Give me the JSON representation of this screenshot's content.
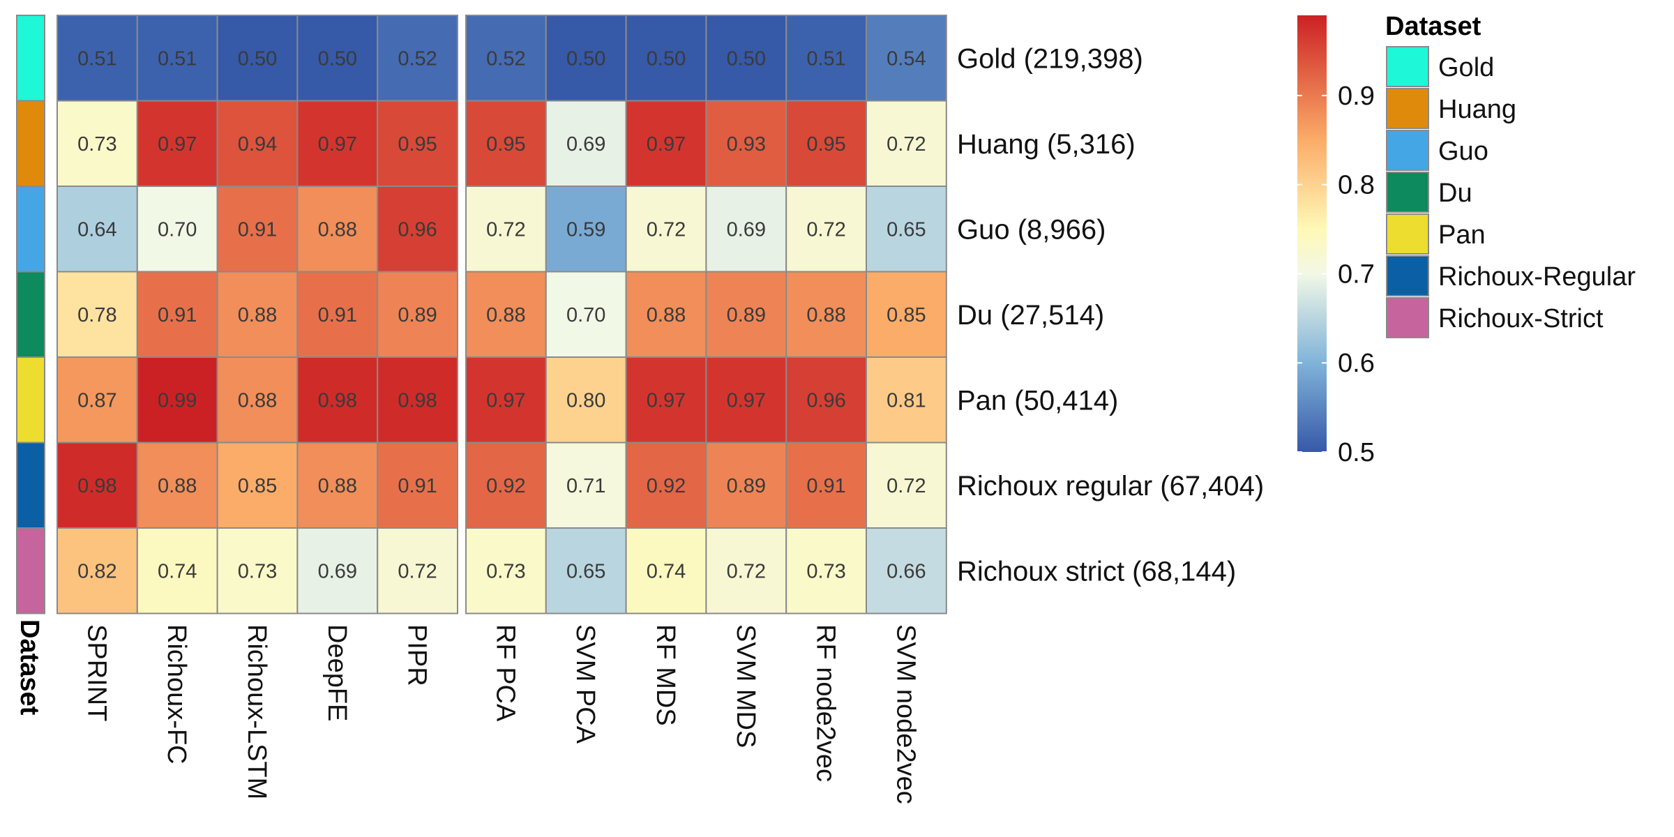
{
  "chart_data": {
    "type": "heatmap",
    "row_annotation_title": "Dataset",
    "rows": [
      "Gold (219,398)",
      "Huang (5,316)",
      "Guo (8,966)",
      "Du (27,514)",
      "Pan (50,414)",
      "Richoux regular (67,404)",
      "Richoux strict (68,144)"
    ],
    "column_groups": [
      [
        "SPRINT",
        "Richoux-FC",
        "Richoux-LSTM",
        "DeepFE",
        "PIPR"
      ],
      [
        "RF PCA",
        "SVM PCA",
        "RF MDS",
        "SVM MDS",
        "RF node2vec",
        "SVM node2vec"
      ]
    ],
    "values": [
      [
        0.51,
        0.51,
        0.5,
        0.5,
        0.52,
        0.52,
        0.5,
        0.5,
        0.5,
        0.51,
        0.54
      ],
      [
        0.73,
        0.97,
        0.94,
        0.97,
        0.95,
        0.95,
        0.69,
        0.97,
        0.93,
        0.95,
        0.72
      ],
      [
        0.64,
        0.7,
        0.91,
        0.88,
        0.96,
        0.72,
        0.59,
        0.72,
        0.69,
        0.72,
        0.65
      ],
      [
        0.78,
        0.91,
        0.88,
        0.91,
        0.89,
        0.88,
        0.7,
        0.88,
        0.89,
        0.88,
        0.85
      ],
      [
        0.87,
        0.99,
        0.88,
        0.98,
        0.98,
        0.97,
        0.8,
        0.97,
        0.97,
        0.96,
        0.81
      ],
      [
        0.98,
        0.88,
        0.85,
        0.88,
        0.91,
        0.92,
        0.71,
        0.92,
        0.89,
        0.91,
        0.72
      ],
      [
        0.82,
        0.74,
        0.73,
        0.69,
        0.72,
        0.73,
        0.65,
        0.74,
        0.72,
        0.73,
        0.66
      ]
    ],
    "row_annotation_colors": [
      "#1ef7d8",
      "#e08a0c",
      "#45a6e6",
      "#0d8a5e",
      "#ecdd2f",
      "#0b5fa5",
      "#c6649e"
    ],
    "color_scale": {
      "range": [
        0.5,
        0.99
      ],
      "ticks": [
        "0.5",
        "0.6",
        "0.7",
        "0.8",
        "0.9"
      ],
      "stops": [
        {
          "value": 0.5,
          "color": "#3659a8"
        },
        {
          "value": 0.6,
          "color": "#80b3d9"
        },
        {
          "value": 0.7,
          "color": "#f2f8e6"
        },
        {
          "value": 0.75,
          "color": "#fff9b6"
        },
        {
          "value": 0.85,
          "color": "#fbac68"
        },
        {
          "value": 0.99,
          "color": "#cc2124"
        }
      ]
    },
    "legend": {
      "title": "Dataset",
      "entries": [
        {
          "label": "Gold",
          "color": "#1ef7d8"
        },
        {
          "label": "Huang",
          "color": "#e08a0c"
        },
        {
          "label": "Guo",
          "color": "#45a6e6"
        },
        {
          "label": "Du",
          "color": "#0d8a5e"
        },
        {
          "label": "Pan",
          "color": "#ecdd2f"
        },
        {
          "label": "Richoux-Regular",
          "color": "#0b5fa5"
        },
        {
          "label": "Richoux-Strict",
          "color": "#c6649e"
        }
      ]
    },
    "legend_placement": "right"
  }
}
